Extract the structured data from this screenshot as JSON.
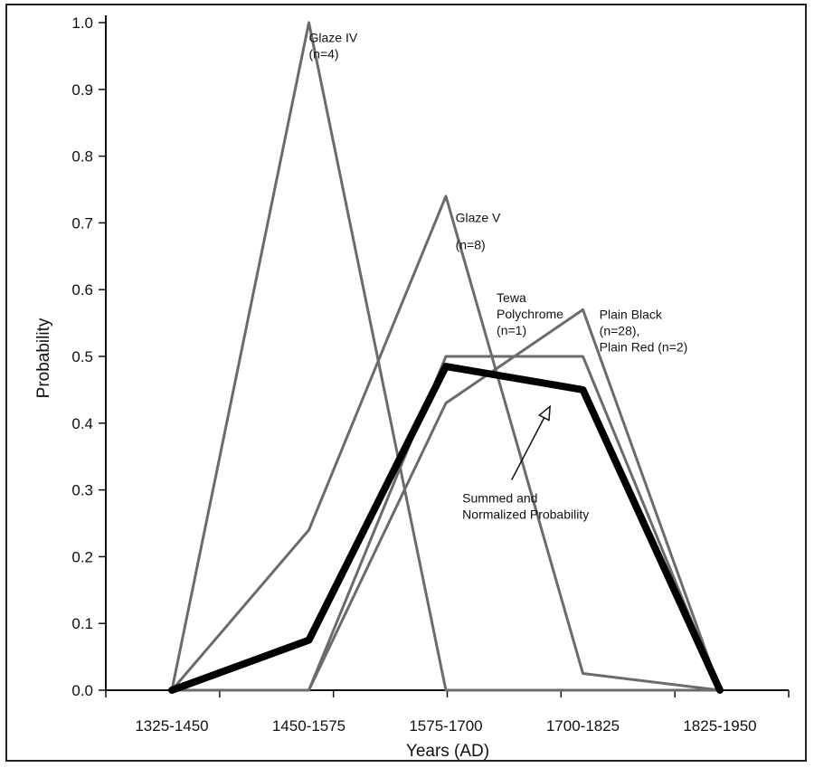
{
  "chart_data": {
    "type": "line",
    "title": "",
    "xlabel": "Years (AD)",
    "ylabel": "Probability",
    "categories": [
      "1325-1450",
      "1450-1575",
      "1575-1700",
      "1700-1825",
      "1825-1950"
    ],
    "ylim": [
      0,
      1.0
    ],
    "yticks": [
      "0.0",
      "0.1",
      "0.2",
      "0.3",
      "0.4",
      "0.5",
      "0.6",
      "0.7",
      "0.8",
      "0.9",
      "1.0"
    ],
    "grid": false,
    "series": [
      {
        "values": [
          0,
          1.0,
          0,
          0,
          0
        ],
        "color": "#6b6b6b"
      },
      {
        "values": [
          0,
          0.24,
          0.74,
          0.025,
          0
        ],
        "color": "#6b6b6b"
      },
      {
        "values": [
          0,
          0,
          0.5,
          0.5,
          0
        ],
        "color": "#6b6b6b"
      },
      {
        "values": [
          0,
          0,
          0.43,
          0.57,
          0
        ],
        "color": "#6b6b6b"
      },
      {
        "values": [
          0,
          0.075,
          0.485,
          0.45,
          0
        ],
        "color": "#000000",
        "emphasis": true
      }
    ],
    "annotations": [
      {
        "lines": [
          "Glaze IV",
          "(n=4)"
        ],
        "x": 1,
        "y": 0.99
      },
      {
        "lines": [
          "Glaze V",
          "(n=8)"
        ],
        "x": 2.07,
        "y": 0.72
      },
      {
        "lines": [
          "Tewa",
          "Polychrome",
          "(n=1)"
        ],
        "x": 2.37,
        "y": 0.6
      },
      {
        "lines": [
          "Plain Black",
          "(n=28),",
          "Plain Red (n=2)"
        ],
        "x": 3.12,
        "y": 0.575
      },
      {
        "lines": [
          "Summed and",
          "Normalized Probability"
        ],
        "x": 2.12,
        "y": 0.3
      }
    ]
  }
}
